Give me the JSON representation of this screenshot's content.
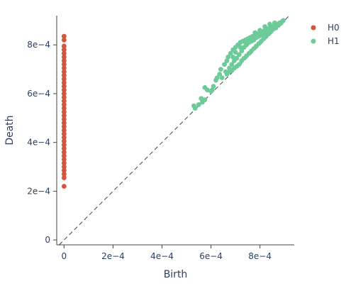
{
  "chart_data": {
    "type": "scatter",
    "xlabel": "Birth",
    "ylabel": "Death",
    "xlim": [
      -3e-05,
      0.00094
    ],
    "ylim": [
      -2e-05,
      0.00092
    ],
    "x_ticks": [
      {
        "value": 0,
        "label": "0"
      },
      {
        "value": 0.0002,
        "label": "2e−4"
      },
      {
        "value": 0.0004,
        "label": "4e−4"
      },
      {
        "value": 0.0006,
        "label": "6e−4"
      },
      {
        "value": 0.0008,
        "label": "8e−4"
      }
    ],
    "y_ticks": [
      {
        "value": 0,
        "label": "0"
      },
      {
        "value": 0.0002,
        "label": "2e−4"
      },
      {
        "value": 0.0004,
        "label": "4e−4"
      },
      {
        "value": 0.0006,
        "label": "6e−4"
      },
      {
        "value": 0.0008,
        "label": "8e−4"
      }
    ],
    "diagonal": true,
    "grid": false,
    "legend_position": "top-right",
    "series": [
      {
        "name": "H0",
        "color": "#d0573a",
        "points": [
          [
            0,
            0.00022
          ],
          [
            0,
            0.000255
          ],
          [
            0,
            0.00027
          ],
          [
            0,
            0.000285
          ],
          [
            0,
            0.0003
          ],
          [
            0,
            0.000315
          ],
          [
            0,
            0.00033
          ],
          [
            0,
            0.000345
          ],
          [
            0,
            0.00036
          ],
          [
            0,
            0.000375
          ],
          [
            0,
            0.00039
          ],
          [
            0,
            0.000405
          ],
          [
            0,
            0.00042
          ],
          [
            0,
            0.000435
          ],
          [
            0,
            0.00045
          ],
          [
            0,
            0.000465
          ],
          [
            0,
            0.00048
          ],
          [
            0,
            0.000495
          ],
          [
            0,
            0.00051
          ],
          [
            0,
            0.000525
          ],
          [
            0,
            0.00054
          ],
          [
            0,
            0.000555
          ],
          [
            0,
            0.00057
          ],
          [
            0,
            0.000585
          ],
          [
            0,
            0.0006
          ],
          [
            0,
            0.000615
          ],
          [
            0,
            0.00063
          ],
          [
            0,
            0.000645
          ],
          [
            0,
            0.00066
          ],
          [
            0,
            0.000675
          ],
          [
            0,
            0.00069
          ],
          [
            0,
            0.000705
          ],
          [
            0,
            0.00072
          ],
          [
            0,
            0.000735
          ],
          [
            0,
            0.00075
          ],
          [
            0,
            0.000765
          ],
          [
            0,
            0.00078
          ],
          [
            0,
            0.000795
          ],
          [
            0,
            0.00082
          ],
          [
            0,
            0.000835
          ]
        ]
      },
      {
        "name": "H1",
        "color": "#6ccb98",
        "points": [
          [
            0.000535,
            0.00054
          ],
          [
            0.00055,
            0.000555
          ],
          [
            0.000565,
            0.000565
          ],
          [
            0.000575,
            0.000575
          ],
          [
            0.00053,
            0.00055
          ],
          [
            0.00056,
            0.00058
          ],
          [
            0.000575,
            0.000625
          ],
          [
            0.000585,
            0.000615
          ],
          [
            0.0006,
            0.00061
          ],
          [
            0.000605,
            0.000615
          ],
          [
            0.00061,
            0.00063
          ],
          [
            0.00062,
            0.000655
          ],
          [
            0.000625,
            0.000665
          ],
          [
            0.000635,
            0.00068
          ],
          [
            0.00064,
            0.0007
          ],
          [
            0.000645,
            0.000665
          ],
          [
            0.000655,
            0.00072
          ],
          [
            0.00066,
            0.00069
          ],
          [
            0.000665,
            0.000735
          ],
          [
            0.00067,
            0.00075
          ],
          [
            0.000675,
            0.000705
          ],
          [
            0.00068,
            0.000765
          ],
          [
            0.000685,
            0.00072
          ],
          [
            0.00069,
            0.00078
          ],
          [
            0.000695,
            0.000735
          ],
          [
            0.0007,
            0.00079
          ],
          [
            0.000705,
            0.000745
          ],
          [
            0.00071,
            0.0008
          ],
          [
            0.000715,
            0.00076
          ],
          [
            0.00072,
            0.00081
          ],
          [
            0.000725,
            0.000775
          ],
          [
            0.00073,
            0.000815
          ],
          [
            0.000735,
            0.00079
          ],
          [
            0.00074,
            0.00082
          ],
          [
            0.000745,
            0.0008
          ],
          [
            0.00075,
            0.000825
          ],
          [
            0.000755,
            0.00081
          ],
          [
            0.00076,
            0.00083
          ],
          [
            0.000765,
            0.000815
          ],
          [
            0.00077,
            0.000835
          ],
          [
            0.000775,
            0.00082
          ],
          [
            0.00078,
            0.00084
          ],
          [
            0.000785,
            0.00083
          ],
          [
            0.00079,
            0.000845
          ],
          [
            0.000795,
            0.000835
          ],
          [
            0.0008,
            0.00085
          ],
          [
            0.000805,
            0.00084
          ],
          [
            0.00081,
            0.000855
          ],
          [
            0.000815,
            0.000845
          ],
          [
            0.00082,
            0.00086
          ],
          [
            0.000825,
            0.00085
          ],
          [
            0.00083,
            0.000865
          ],
          [
            0.000835,
            0.000855
          ],
          [
            0.00084,
            0.00087
          ],
          [
            0.000845,
            0.00086
          ],
          [
            0.00085,
            0.000875
          ],
          [
            0.000855,
            0.000865
          ],
          [
            0.00086,
            0.00088
          ],
          [
            0.000865,
            0.00087
          ],
          [
            0.00087,
            0.000885
          ],
          [
            0.000875,
            0.00088
          ],
          [
            0.00088,
            0.00089
          ],
          [
            0.000885,
            0.000888
          ],
          [
            0.00089,
            0.000895
          ],
          [
            0.000895,
            0.0009
          ],
          [
            0.000665,
            0.00068
          ],
          [
            0.000675,
            0.00069
          ],
          [
            0.000685,
            0.000695
          ],
          [
            0.000695,
            0.000705
          ],
          [
            0.000705,
            0.000712
          ],
          [
            0.000715,
            0.00072
          ],
          [
            0.000725,
            0.000735
          ],
          [
            0.000735,
            0.000745
          ],
          [
            0.000745,
            0.000755
          ],
          [
            0.000755,
            0.000765
          ],
          [
            0.000765,
            0.000775
          ],
          [
            0.000775,
            0.000785
          ],
          [
            0.000785,
            0.000795
          ],
          [
            0.000795,
            0.000805
          ],
          [
            0.000805,
            0.000815
          ],
          [
            0.000815,
            0.000825
          ],
          [
            0.000825,
            0.000835
          ],
          [
            0.000835,
            0.000845
          ],
          [
            0.000845,
            0.000855
          ],
          [
            0.000855,
            0.00087
          ],
          [
            0.00069,
            0.00075
          ],
          [
            0.0007,
            0.00077
          ],
          [
            0.00072,
            0.00079
          ],
          [
            0.00074,
            0.00081
          ],
          [
            0.00076,
            0.00082
          ],
          [
            0.00078,
            0.00085
          ],
          [
            0.0008,
            0.00086
          ],
          [
            0.00082,
            0.000875
          ],
          [
            0.00084,
            0.000885
          ],
          [
            0.00086,
            0.00089
          ]
        ]
      }
    ]
  }
}
